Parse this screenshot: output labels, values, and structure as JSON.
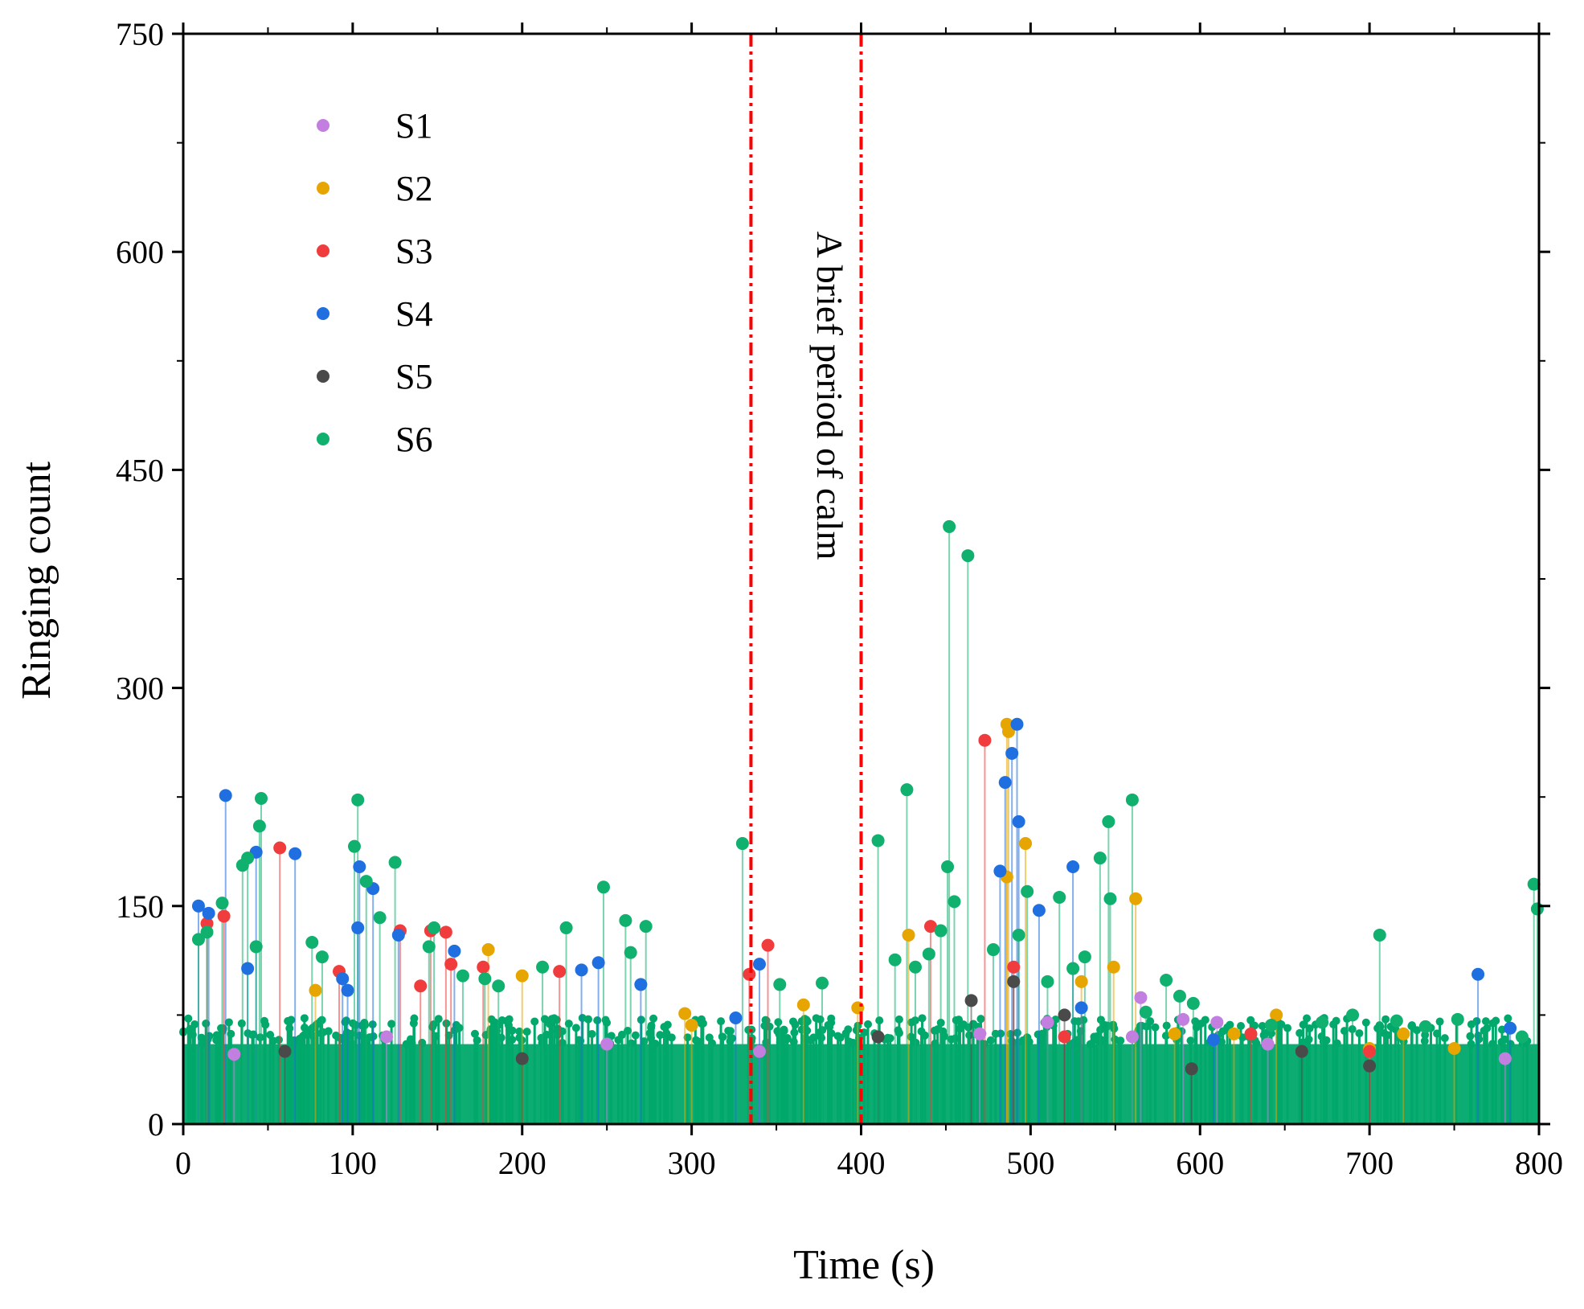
{
  "chart_data": {
    "type": "scatter",
    "style": "stem scatter (drop lines to baseline)",
    "xlabel": "Time (s)",
    "ylabel": "Ringing count",
    "xlim": [
      0,
      800
    ],
    "ylim": [
      0,
      750
    ],
    "xticks": [
      0,
      100,
      200,
      300,
      400,
      500,
      600,
      700,
      800
    ],
    "yticks": [
      0,
      150,
      300,
      450,
      600,
      750
    ],
    "legend_position": "top-left",
    "annotation": {
      "text": "A brief period of calm",
      "x_start": 335,
      "x_end": 400,
      "line_color": "#ff0000",
      "line_style": "dash-dot"
    },
    "background_band": {
      "description": "dense low-amplitude events across full time range",
      "y_max": 55,
      "color": "#00a86b"
    },
    "series": [
      {
        "name": "S1",
        "color": "#c37fdf",
        "points": [
          [
            30,
            48
          ],
          [
            120,
            60
          ],
          [
            250,
            55
          ],
          [
            340,
            50
          ],
          [
            470,
            62
          ],
          [
            510,
            70
          ],
          [
            560,
            60
          ],
          [
            565,
            87
          ],
          [
            590,
            72
          ],
          [
            610,
            70
          ],
          [
            640,
            55
          ],
          [
            700,
            50
          ],
          [
            780,
            45
          ]
        ]
      },
      {
        "name": "S2",
        "color": "#e6a500",
        "points": [
          [
            78,
            92
          ],
          [
            180,
            120
          ],
          [
            200,
            102
          ],
          [
            296,
            76
          ],
          [
            300,
            68
          ],
          [
            366,
            82
          ],
          [
            398,
            80
          ],
          [
            428,
            130
          ],
          [
            486,
            275
          ],
          [
            487,
            270
          ],
          [
            486,
            170
          ],
          [
            497,
            193
          ],
          [
            530,
            98
          ],
          [
            549,
            108
          ],
          [
            562,
            155
          ],
          [
            585,
            62
          ],
          [
            620,
            62
          ],
          [
            645,
            75
          ],
          [
            700,
            52
          ],
          [
            720,
            62
          ],
          [
            750,
            52
          ]
        ]
      },
      {
        "name": "S3",
        "color": "#f03c3c",
        "points": [
          [
            14,
            138
          ],
          [
            24,
            143
          ],
          [
            57,
            190
          ],
          [
            92,
            105
          ],
          [
            128,
            133
          ],
          [
            140,
            95
          ],
          [
            146,
            133
          ],
          [
            155,
            132
          ],
          [
            158,
            110
          ],
          [
            177,
            108
          ],
          [
            222,
            105
          ],
          [
            334,
            103
          ],
          [
            345,
            123
          ],
          [
            441,
            136
          ],
          [
            473,
            264
          ],
          [
            490,
            108
          ],
          [
            520,
            60
          ],
          [
            630,
            62
          ],
          [
            700,
            50
          ]
        ]
      },
      {
        "name": "S4",
        "color": "#1f6fe0",
        "points": [
          [
            9,
            150
          ],
          [
            15,
            145
          ],
          [
            25,
            226
          ],
          [
            38,
            107
          ],
          [
            43,
            187
          ],
          [
            66,
            186
          ],
          [
            94,
            100
          ],
          [
            97,
            92
          ],
          [
            103,
            135
          ],
          [
            104,
            177
          ],
          [
            112,
            162
          ],
          [
            127,
            130
          ],
          [
            160,
            119
          ],
          [
            235,
            106
          ],
          [
            245,
            111
          ],
          [
            270,
            96
          ],
          [
            326,
            73
          ],
          [
            340,
            110
          ],
          [
            482,
            174
          ],
          [
            485,
            235
          ],
          [
            489,
            255
          ],
          [
            492,
            275
          ],
          [
            493,
            208
          ],
          [
            505,
            147
          ],
          [
            525,
            177
          ],
          [
            530,
            80
          ],
          [
            608,
            58
          ],
          [
            764,
            103
          ],
          [
            783,
            66
          ]
        ]
      },
      {
        "name": "S5",
        "color": "#4a4a4a",
        "points": [
          [
            60,
            50
          ],
          [
            200,
            45
          ],
          [
            410,
            60
          ],
          [
            465,
            85
          ],
          [
            490,
            98
          ],
          [
            520,
            75
          ],
          [
            595,
            38
          ],
          [
            660,
            50
          ],
          [
            700,
            40
          ]
        ]
      },
      {
        "name": "S6",
        "color": "#10b06e",
        "points": [
          [
            9,
            127
          ],
          [
            14,
            132
          ],
          [
            23,
            152
          ],
          [
            35,
            178
          ],
          [
            38,
            183
          ],
          [
            43,
            122
          ],
          [
            45,
            205
          ],
          [
            46,
            224
          ],
          [
            76,
            125
          ],
          [
            82,
            115
          ],
          [
            101,
            191
          ],
          [
            103,
            223
          ],
          [
            108,
            167
          ],
          [
            116,
            142
          ],
          [
            125,
            180
          ],
          [
            145,
            122
          ],
          [
            148,
            135
          ],
          [
            165,
            102
          ],
          [
            178,
            100
          ],
          [
            186,
            95
          ],
          [
            212,
            108
          ],
          [
            226,
            135
          ],
          [
            248,
            163
          ],
          [
            261,
            140
          ],
          [
            264,
            118
          ],
          [
            273,
            136
          ],
          [
            330,
            193
          ],
          [
            352,
            96
          ],
          [
            377,
            97
          ],
          [
            410,
            195
          ],
          [
            420,
            113
          ],
          [
            427,
            230
          ],
          [
            432,
            108
          ],
          [
            440,
            117
          ],
          [
            447,
            133
          ],
          [
            451,
            177
          ],
          [
            452,
            411
          ],
          [
            455,
            153
          ],
          [
            463,
            391
          ],
          [
            478,
            120
          ],
          [
            493,
            130
          ],
          [
            498,
            160
          ],
          [
            510,
            98
          ],
          [
            517,
            156
          ],
          [
            525,
            107
          ],
          [
            532,
            115
          ],
          [
            541,
            183
          ],
          [
            546,
            208
          ],
          [
            547,
            155
          ],
          [
            560,
            223
          ],
          [
            568,
            77
          ],
          [
            580,
            99
          ],
          [
            588,
            88
          ],
          [
            596,
            83
          ],
          [
            642,
            68
          ],
          [
            672,
            70
          ],
          [
            690,
            75
          ],
          [
            706,
            130
          ],
          [
            716,
            71
          ],
          [
            733,
            67
          ],
          [
            752,
            72
          ],
          [
            790,
            60
          ],
          [
            797,
            165
          ],
          [
            799,
            148
          ]
        ]
      }
    ]
  }
}
